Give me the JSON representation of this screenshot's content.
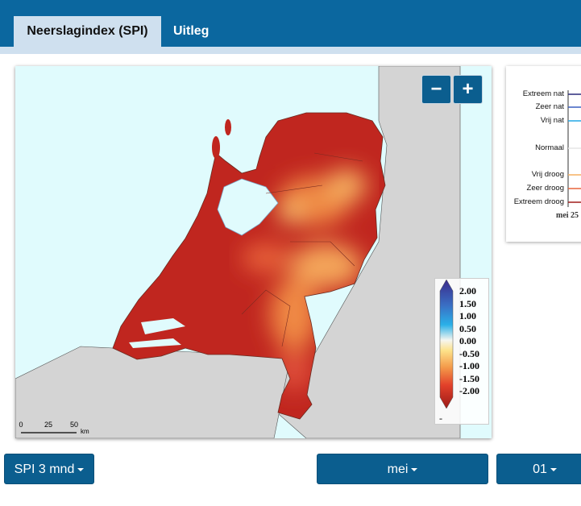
{
  "tabs": [
    "Neerslagindex (SPI)",
    "Uitleg"
  ],
  "zoom": [
    "−",
    "+"
  ],
  "map_legend": {
    "labels": [
      "2.00",
      "1.50",
      "1.00",
      "0.50",
      "0.00",
      "-0.50",
      "-1.00",
      "-1.50",
      "-2.00"
    ],
    "no_data": "-"
  },
  "scale_bar": {
    "labels": [
      "0",
      "25",
      "50"
    ],
    "unit": "km"
  },
  "side_panel": {
    "categories": [
      "Extreem nat",
      "Zeer nat",
      "Vrij nat",
      "Normaal",
      "Vrij droog",
      "Zeer droog",
      "Extreem droog"
    ],
    "date": "mei 25"
  },
  "controls": [
    "SPI 3 mnd",
    "mei",
    "01"
  ]
}
